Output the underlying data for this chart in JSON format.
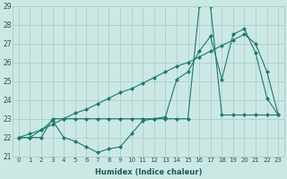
{
  "xlabel": "Humidex (Indice chaleur)",
  "x": [
    0,
    1,
    2,
    3,
    4,
    5,
    6,
    7,
    8,
    9,
    10,
    11,
    12,
    13,
    14,
    15,
    16,
    17,
    18,
    19,
    20,
    21,
    22,
    23
  ],
  "line1": [
    22.0,
    22.0,
    22.4,
    22.9,
    22.0,
    21.8,
    21.5,
    21.2,
    21.4,
    21.5,
    22.2,
    22.9,
    23.0,
    23.1,
    25.1,
    25.5,
    26.6,
    27.4,
    25.1,
    27.5,
    27.8,
    26.5,
    24.1,
    23.2
  ],
  "line2": [
    22.0,
    22.0,
    22.0,
    23.0,
    23.0,
    23.0,
    23.0,
    23.0,
    23.0,
    23.0,
    23.0,
    23.0,
    23.0,
    23.0,
    23.0,
    23.0,
    29.0,
    29.0,
    23.2,
    23.2,
    23.2,
    23.2,
    23.2,
    23.2
  ],
  "line_diag": [
    22.0,
    22.2,
    22.4,
    22.7,
    23.0,
    23.3,
    23.5,
    23.8,
    24.1,
    24.4,
    24.6,
    24.9,
    25.2,
    25.5,
    25.8,
    26.0,
    26.3,
    26.6,
    26.9,
    27.2,
    27.5,
    27.0,
    25.5,
    23.2
  ],
  "color": "#1a7a6e",
  "background_color": "#cce8e5",
  "grid_color": "#aacfcc",
  "ylim": [
    21,
    29
  ],
  "yticks": [
    21,
    22,
    23,
    24,
    25,
    26,
    27,
    28,
    29
  ],
  "xticks": [
    0,
    1,
    2,
    3,
    4,
    5,
    6,
    7,
    8,
    9,
    10,
    11,
    12,
    13,
    14,
    15,
    16,
    17,
    18,
    19,
    20,
    21,
    22,
    23
  ],
  "markersize": 2.5
}
